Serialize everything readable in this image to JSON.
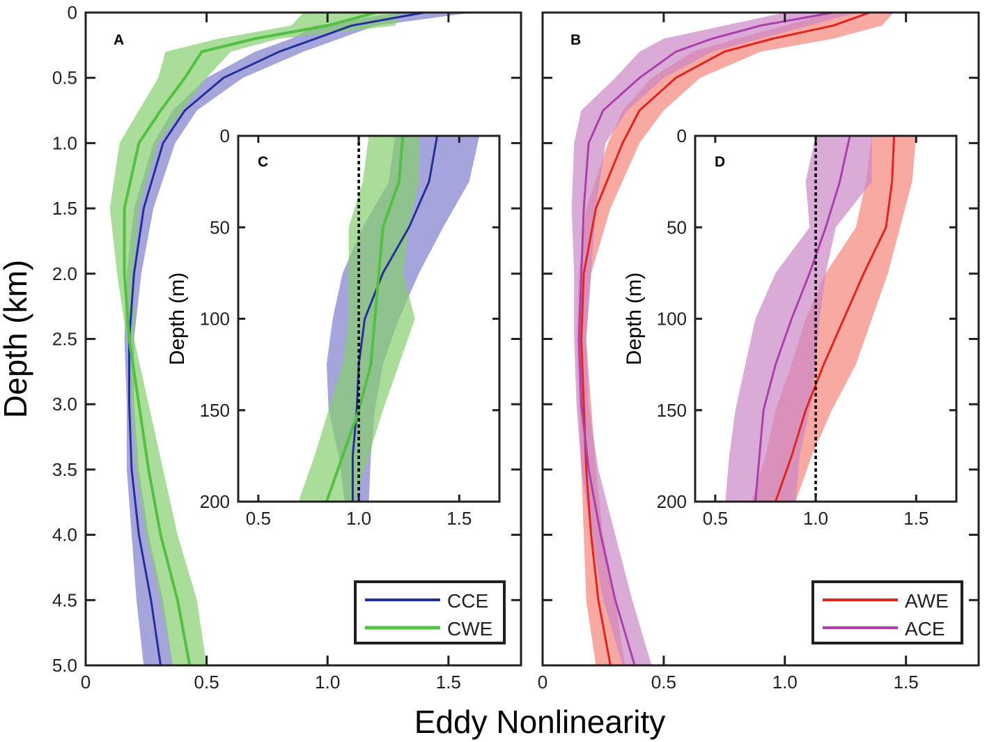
{
  "chart_data": {
    "type": "line",
    "common_xlabel": "Eddy Nonlinearity",
    "colors": {
      "CCE": {
        "line": "#23309a",
        "band": "#7f7fcc"
      },
      "CWE": {
        "line": "#52c043",
        "band": "#86cf6e"
      },
      "AWE": {
        "line": "#e3231d",
        "band": "#f4857a"
      },
      "ACE": {
        "line": "#ab3fab",
        "band": "#cc88c6"
      }
    },
    "panels": [
      {
        "id": "A",
        "label": "A",
        "ylabel": "Depth (km)",
        "xlim": [
          0,
          1.8
        ],
        "ylim": [
          0,
          5.0
        ],
        "y_reversed": true,
        "xticks": [
          0,
          0.5,
          1.0,
          1.5
        ],
        "xtick_labels": [
          "0",
          "0.5",
          "1.0",
          "1.5"
        ],
        "yticks": [
          0,
          0.5,
          1.0,
          1.5,
          2.0,
          2.5,
          3.0,
          3.5,
          4.0,
          4.5,
          5.0
        ],
        "ytick_labels": [
          "0",
          "0.5",
          "1.0",
          "1.5",
          "2.0",
          "2.5",
          "3.0",
          "3.5",
          "4.0",
          "4.5",
          "5.0"
        ],
        "legend": {
          "placement": "bottom-right",
          "entries": [
            "CCE",
            "CWE"
          ]
        },
        "depth": [
          0,
          0.1,
          0.2,
          0.3,
          0.5,
          0.75,
          1.0,
          1.5,
          2.0,
          2.5,
          3.0,
          3.5,
          4.0,
          4.5,
          5.0
        ],
        "series": [
          {
            "name": "CCE",
            "mean": [
              1.4,
              1.1,
              0.95,
              0.8,
              0.57,
              0.41,
              0.32,
              0.24,
              0.2,
              0.18,
              0.18,
              0.19,
              0.22,
              0.27,
              0.31
            ],
            "lower": [
              1.3,
              0.95,
              0.85,
              0.7,
              0.5,
              0.36,
              0.28,
              0.2,
              0.17,
              0.16,
              0.17,
              0.17,
              0.19,
              0.21,
              0.24
            ],
            "upper": [
              1.6,
              1.2,
              1.05,
              0.9,
              0.65,
              0.46,
              0.37,
              0.28,
              0.23,
              0.2,
              0.2,
              0.22,
              0.26,
              0.32,
              0.36
            ]
          },
          {
            "name": "CWE",
            "mean": [
              1.2,
              1.0,
              0.7,
              0.48,
              0.41,
              0.31,
              0.22,
              0.16,
              0.16,
              0.18,
              0.22,
              0.26,
              0.31,
              0.38,
              0.43
            ],
            "lower": [
              0.9,
              0.85,
              0.55,
              0.33,
              0.3,
              0.22,
              0.14,
              0.1,
              0.13,
              0.17,
              0.19,
              0.21,
              0.25,
              0.31,
              0.36
            ],
            "upper": [
              1.3,
              1.28,
              0.8,
              0.6,
              0.5,
              0.4,
              0.3,
              0.22,
              0.2,
              0.2,
              0.26,
              0.32,
              0.38,
              0.46,
              0.5
            ]
          }
        ]
      },
      {
        "id": "B",
        "label": "B",
        "ylabel": "",
        "xlim": [
          0,
          1.8
        ],
        "ylim": [
          0,
          5.0
        ],
        "y_reversed": true,
        "xticks": [
          0,
          0.5,
          1.0,
          1.5
        ],
        "xtick_labels": [
          "0",
          "0.5",
          "1.0",
          "1.5"
        ],
        "yticks": [
          0,
          0.5,
          1.0,
          1.5,
          2.0,
          2.5,
          3.0,
          3.5,
          4.0,
          4.5,
          5.0
        ],
        "ytick_labels": [],
        "legend": {
          "placement": "bottom-right",
          "entries": [
            "AWE",
            "ACE"
          ]
        },
        "depth": [
          0,
          0.1,
          0.2,
          0.3,
          0.5,
          0.75,
          1.0,
          1.5,
          2.0,
          2.5,
          3.0,
          3.5,
          4.0,
          4.5,
          5.0
        ],
        "series": [
          {
            "name": "AWE",
            "mean": [
              1.35,
              1.2,
              0.95,
              0.75,
              0.55,
              0.4,
              0.33,
              0.22,
              0.17,
              0.16,
              0.17,
              0.18,
              0.2,
              0.23,
              0.28
            ],
            "lower": [
              1.2,
              1.0,
              0.8,
              0.62,
              0.45,
              0.33,
              0.27,
              0.18,
              0.15,
              0.14,
              0.15,
              0.16,
              0.17,
              0.18,
              0.22
            ],
            "upper": [
              1.45,
              1.4,
              1.2,
              0.9,
              0.65,
              0.5,
              0.4,
              0.28,
              0.2,
              0.18,
              0.2,
              0.22,
              0.25,
              0.3,
              0.34
            ]
          },
          {
            "name": "ACE",
            "mean": [
              1.2,
              0.9,
              0.7,
              0.55,
              0.4,
              0.25,
              0.19,
              0.17,
              0.16,
              0.15,
              0.16,
              0.19,
              0.24,
              0.3,
              0.38
            ],
            "lower": [
              1.0,
              0.75,
              0.5,
              0.4,
              0.3,
              0.16,
              0.13,
              0.12,
              0.13,
              0.13,
              0.14,
              0.16,
              0.2,
              0.25,
              0.33
            ],
            "upper": [
              1.3,
              1.1,
              0.9,
              0.7,
              0.5,
              0.35,
              0.26,
              0.22,
              0.2,
              0.18,
              0.19,
              0.23,
              0.3,
              0.37,
              0.45
            ]
          }
        ]
      },
      {
        "id": "C",
        "label": "C",
        "ylabel": "Depth (m)",
        "inset_of": "A",
        "xlim": [
          0.4,
          1.7
        ],
        "ylim": [
          0,
          200
        ],
        "y_reversed": true,
        "xticks": [
          0.5,
          1.0,
          1.5
        ],
        "xtick_labels": [
          "0.5",
          "1.0",
          "1.5"
        ],
        "yticks": [
          0,
          50,
          100,
          150,
          200
        ],
        "ytick_labels": [
          "0",
          "50",
          "100",
          "150",
          "200"
        ],
        "reference_line_x": 1.0,
        "depth": [
          0,
          25,
          50,
          75,
          100,
          125,
          150,
          175,
          200
        ],
        "series": [
          {
            "name": "CCE",
            "mean": [
              1.39,
              1.35,
              1.25,
              1.12,
              1.03,
              1.0,
              0.99,
              0.97,
              0.97
            ],
            "lower": [
              1.18,
              1.15,
              1.02,
              0.92,
              0.87,
              0.84,
              0.85,
              0.9,
              0.93
            ],
            "upper": [
              1.6,
              1.55,
              1.42,
              1.3,
              1.2,
              1.12,
              1.08,
              1.06,
              1.05
            ]
          },
          {
            "name": "CWE",
            "mean": [
              1.22,
              1.2,
              1.12,
              1.1,
              1.08,
              1.06,
              1.0,
              0.92,
              0.84
            ],
            "lower": [
              1.05,
              1.02,
              0.95,
              0.95,
              0.95,
              0.92,
              0.85,
              0.78,
              0.7
            ],
            "upper": [
              1.3,
              1.3,
              1.25,
              1.22,
              1.28,
              1.2,
              1.12,
              1.05,
              0.98
            ]
          }
        ]
      },
      {
        "id": "D",
        "label": "D",
        "ylabel": "Depth (m)",
        "inset_of": "B",
        "xlim": [
          0.4,
          1.7
        ],
        "ylim": [
          0,
          200
        ],
        "y_reversed": true,
        "xticks": [
          0.5,
          1.0,
          1.5
        ],
        "xtick_labels": [
          "0.5",
          "1.0",
          "1.5"
        ],
        "yticks": [
          0,
          50,
          100,
          150,
          200
        ],
        "ytick_labels": [
          "0",
          "50",
          "100",
          "150",
          "200"
        ],
        "reference_line_x": 1.0,
        "depth": [
          0,
          25,
          50,
          75,
          100,
          125,
          150,
          175,
          200
        ],
        "series": [
          {
            "name": "AWE",
            "mean": [
              1.39,
              1.38,
              1.35,
              1.24,
              1.14,
              1.04,
              0.95,
              0.88,
              0.8
            ],
            "lower": [
              1.28,
              1.25,
              1.2,
              1.05,
              0.95,
              0.88,
              0.8,
              0.75,
              0.68
            ],
            "upper": [
              1.5,
              1.48,
              1.42,
              1.36,
              1.28,
              1.2,
              1.08,
              0.98,
              0.9
            ]
          },
          {
            "name": "ACE",
            "mean": [
              1.17,
              1.12,
              1.05,
              0.97,
              0.88,
              0.8,
              0.74,
              0.72,
              0.7
            ],
            "lower": [
              1.0,
              0.95,
              0.97,
              0.8,
              0.7,
              0.65,
              0.6,
              0.57,
              0.55
            ],
            "upper": [
              1.28,
              1.28,
              1.1,
              1.05,
              1.02,
              1.0,
              0.97,
              0.92,
              0.9
            ]
          }
        ]
      }
    ]
  }
}
